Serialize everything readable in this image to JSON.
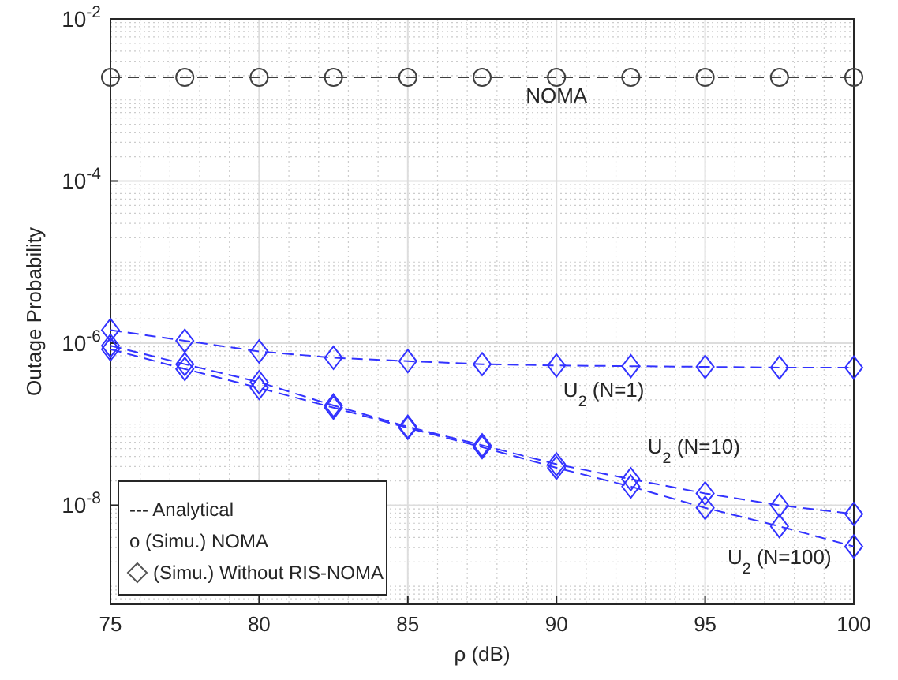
{
  "chart_data": {
    "type": "line",
    "xlabel": "ρ (dB)",
    "ylabel": "Outage Probability",
    "log": "y",
    "grid": true,
    "line_style": "dashed",
    "x": [
      75,
      77.5,
      80,
      82.5,
      85,
      87.5,
      90,
      92.5,
      95,
      97.5,
      100
    ],
    "xlim": [
      75,
      100
    ],
    "xticks": [
      75,
      80,
      85,
      90,
      95,
      100
    ],
    "ylim": [
      6e-10,
      0.01
    ],
    "yticks": [
      {
        "value": 1e-08,
        "label": "10$^{-8}$"
      },
      {
        "value": 1e-06,
        "label": "10$^{-6}$"
      },
      {
        "value": 0.0001,
        "label": "10$^{-4}$"
      },
      {
        "value": 0.01,
        "label": "10$^{-2}$"
      }
    ],
    "series": [
      {
        "name": "NOMA",
        "color": "#404040",
        "marker": "circle",
        "values": [
          0.0019,
          0.0019,
          0.0019,
          0.0019,
          0.0019,
          0.0019,
          0.0019,
          0.0019,
          0.0019,
          0.0019,
          0.0019
        ]
      },
      {
        "name": "U$_{2}$ (N=1)",
        "color": "#3333ff",
        "marker": "diamond",
        "values": [
          1.45e-06,
          1.07e-06,
          7.9e-07,
          6.6e-07,
          6e-07,
          5.5e-07,
          5.3e-07,
          5.2e-07,
          5.1e-07,
          5e-07,
          5e-07
        ]
      },
      {
        "name": "U$_{2}$ (N=10)",
        "color": "#3333ff",
        "marker": "diamond",
        "values": [
          9.3e-07,
          5.5e-07,
          3.3e-07,
          1.7e-07,
          9.3e-08,
          5.5e-08,
          3.2e-08,
          2.1e-08,
          1.4e-08,
          1e-08,
          7.8e-09
        ]
      },
      {
        "name": "U$_{2}$ (N=100)",
        "color": "#3333ff",
        "marker": "diamond",
        "values": [
          8.4e-07,
          4.8e-07,
          2.8e-07,
          1.6e-07,
          9e-08,
          5.2e-08,
          2.9e-08,
          1.7e-08,
          9.3e-09,
          5.5e-09,
          3.1e-09
        ]
      }
    ],
    "annotations": [
      "--- Analytical",
      "o (Simu.) NOMA",
      "(Simu.) Without RIS-NOMA"
    ]
  }
}
